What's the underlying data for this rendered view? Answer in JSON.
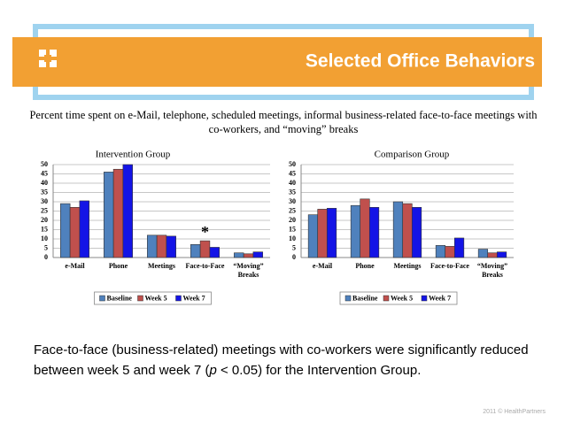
{
  "slide": {
    "title": "Selected Office Behaviors",
    "description": "Percent time spent on e-Mail, telephone, scheduled meetings, informal business-related face-to-face meetings with co-workers, and “moving” breaks",
    "finding": {
      "before": "Face-to-face (business-related) meetings with co-workers were significantly reduced between week 5 and week 7 (",
      "italic": "p",
      "after": " < 0.05) for the Intervention Group."
    },
    "footer": "2011 © HealthPartners"
  },
  "chart_data": [
    {
      "type": "bar",
      "title": "Intervention Group",
      "categories": [
        "e-Mail",
        "Phone",
        "Meetings",
        "Face-to-Face",
        "“Moving” Breaks"
      ],
      "series": [
        {
          "name": "Baseline",
          "color": "#4f81bd",
          "values": [
            29,
            46,
            12,
            7,
            2.5
          ]
        },
        {
          "name": "Week 5",
          "color": "#c0504d",
          "values": [
            27,
            47.5,
            12,
            9,
            2
          ]
        },
        {
          "name": "Week 7",
          "color": "#1414e6",
          "values": [
            30.5,
            50,
            11.5,
            5.5,
            3
          ]
        }
      ],
      "ylim": [
        0,
        50
      ],
      "yticks": [
        0,
        5,
        10,
        15,
        20,
        25,
        30,
        35,
        40,
        45,
        50
      ],
      "grid": true,
      "legend": "bottom",
      "annotation": {
        "text": "*",
        "category": "Face-to-Face"
      }
    },
    {
      "type": "bar",
      "title": "Comparison Group",
      "categories": [
        "e-Mail",
        "Phone",
        "Meetings",
        "Face-to-Face",
        "“Moving” Breaks"
      ],
      "series": [
        {
          "name": "Baseline",
          "color": "#4f81bd",
          "values": [
            23,
            28,
            30,
            6.5,
            4.5
          ]
        },
        {
          "name": "Week 5",
          "color": "#c0504d",
          "values": [
            26,
            31.5,
            29,
            6,
            2.5
          ]
        },
        {
          "name": "Week 7",
          "color": "#1414e6",
          "values": [
            26.5,
            27,
            27,
            10.5,
            3
          ]
        }
      ],
      "ylim": [
        0,
        50
      ],
      "yticks": [
        0,
        5,
        10,
        15,
        20,
        25,
        30,
        35,
        40,
        45,
        50
      ],
      "grid": true,
      "legend": "bottom"
    }
  ]
}
